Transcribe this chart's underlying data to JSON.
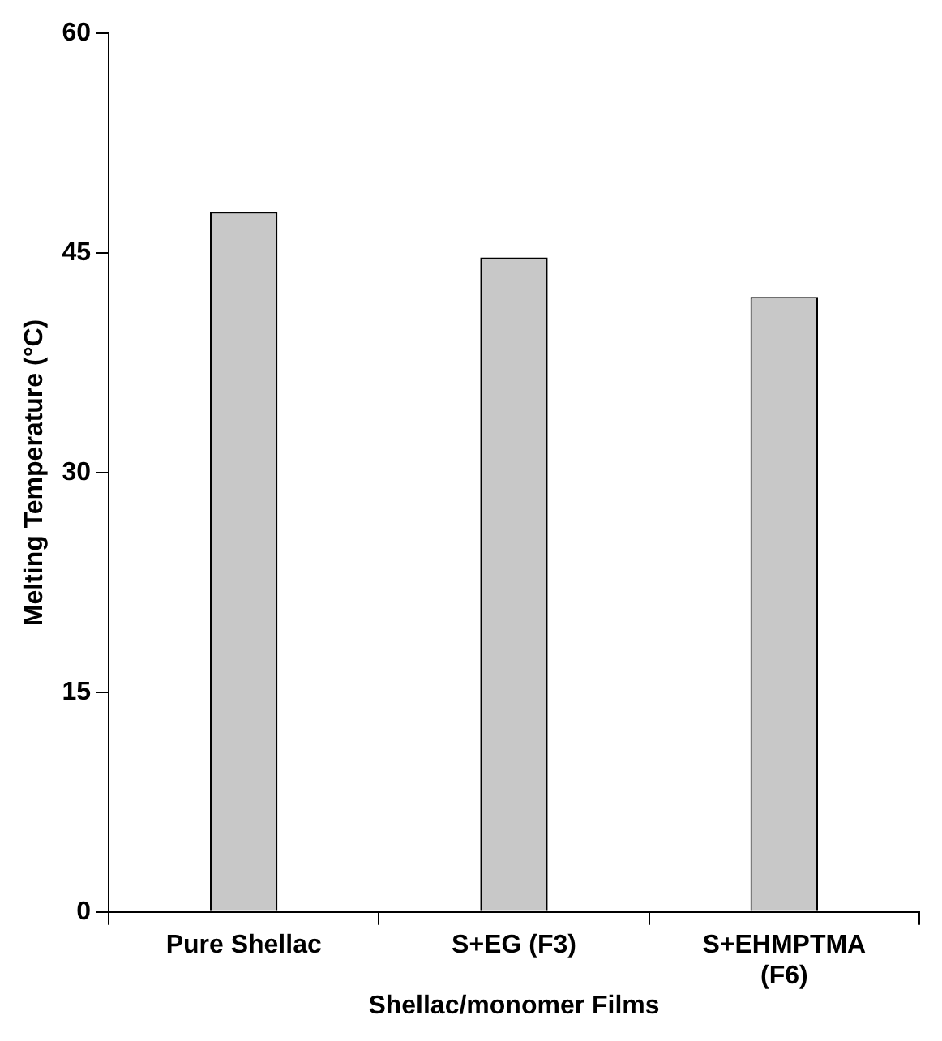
{
  "chart_data": {
    "type": "bar",
    "xlabel": "Shellac/monomer Films",
    "ylabel": "Melting Temperature (°C)",
    "categories": [
      "Pure Shellac",
      "S+EG (F3)",
      "S+EHMPTMA (F6)"
    ],
    "values": [
      47.8,
      44.7,
      42
    ],
    "color": "#c8c8c8",
    "ylim": [
      0,
      60
    ],
    "yticks": [
      0,
      15,
      30,
      45,
      60
    ],
    "grid": false,
    "legend": false
  }
}
